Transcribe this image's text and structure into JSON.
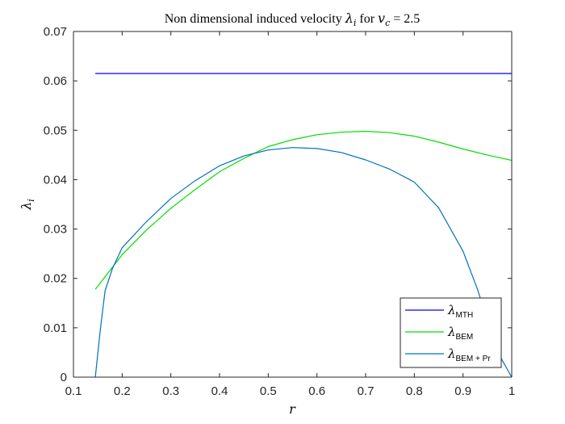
{
  "chart_data": {
    "type": "line",
    "title": {
      "text": "Non dimensional induced velocity",
      "lambda_symbol": "λ",
      "lambda_sub": "i",
      "for_text": "for",
      "vc_symbol": "v",
      "vc_sub": "c",
      "eq_text": "= 2.5"
    },
    "xlabel": "r",
    "ylabel": {
      "symbol": "λ",
      "sub": "i"
    },
    "xlim": [
      0.1,
      1.0
    ],
    "ylim": [
      0,
      0.07
    ],
    "xticks": [
      0.1,
      0.2,
      0.3,
      0.4,
      0.5,
      0.6,
      0.7,
      0.8,
      0.9,
      1.0
    ],
    "xtick_labels": [
      "0.1",
      "0.2",
      "0.3",
      "0.4",
      "0.5",
      "0.6",
      "0.7",
      "0.8",
      "0.9",
      "1"
    ],
    "yticks": [
      0,
      0.01,
      0.02,
      0.03,
      0.04,
      0.05,
      0.06,
      0.07
    ],
    "ytick_labels": [
      "0",
      "0.01",
      "0.02",
      "0.03",
      "0.04",
      "0.05",
      "0.06",
      "0.07"
    ],
    "grid": false,
    "legend_position": "bottom-right",
    "series": [
      {
        "name": "MTH",
        "legend_symbol": "λ",
        "color": "#0000ff",
        "x": [
          0.145,
          1.0
        ],
        "y": [
          0.0615,
          0.0615
        ]
      },
      {
        "name": "BEM",
        "legend_symbol": "λ",
        "color": "#00dd00",
        "x": [
          0.145,
          0.2,
          0.25,
          0.3,
          0.35,
          0.4,
          0.45,
          0.5,
          0.55,
          0.6,
          0.65,
          0.7,
          0.75,
          0.8,
          0.85,
          0.9,
          0.95,
          1.0
        ],
        "y": [
          0.0178,
          0.0248,
          0.0298,
          0.0342,
          0.038,
          0.0416,
          0.0443,
          0.0467,
          0.0481,
          0.0491,
          0.0496,
          0.0498,
          0.0495,
          0.0488,
          0.0476,
          0.0462,
          0.045,
          0.0439
        ]
      },
      {
        "name": "BEM + Pr",
        "legend_symbol": "λ",
        "color": "#0072bd",
        "x": [
          0.145,
          0.155,
          0.165,
          0.18,
          0.2,
          0.25,
          0.3,
          0.35,
          0.4,
          0.45,
          0.5,
          0.55,
          0.6,
          0.65,
          0.7,
          0.75,
          0.8,
          0.85,
          0.9,
          0.93,
          0.96,
          0.98,
          1.0
        ],
        "y": [
          0.0,
          0.0095,
          0.0175,
          0.022,
          0.0262,
          0.0315,
          0.0362,
          0.0398,
          0.0428,
          0.0448,
          0.046,
          0.0465,
          0.0463,
          0.0455,
          0.044,
          0.0421,
          0.0395,
          0.0343,
          0.0255,
          0.0177,
          0.0083,
          0.0035,
          0.0
        ]
      }
    ]
  }
}
